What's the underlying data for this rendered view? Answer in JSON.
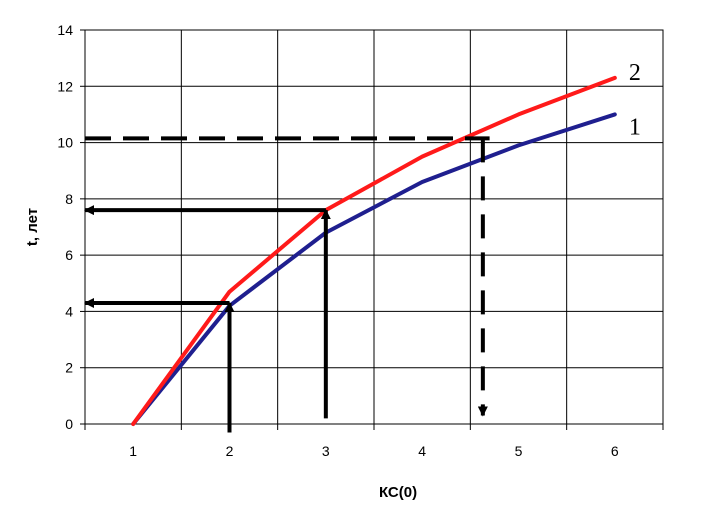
{
  "chart_data": {
    "type": "line",
    "xlabel": "КС(0)",
    "ylabel": "t, лет",
    "xlim": [
      0.5,
      6.5
    ],
    "ylim": [
      0,
      14
    ],
    "x_ticks": [
      "1",
      "2",
      "3",
      "4",
      "5",
      "6"
    ],
    "y_ticks": [
      "0",
      "2",
      "4",
      "6",
      "8",
      "10",
      "12",
      "14"
    ],
    "grid": true,
    "x": [
      1,
      2,
      3,
      4,
      5,
      6
    ],
    "series": [
      {
        "name": "1",
        "color": "#1f1f8f",
        "values": [
          0,
          4.2,
          6.8,
          8.6,
          9.9,
          11.0
        ]
      },
      {
        "name": "2",
        "color": "#ff1a1a",
        "values": [
          0,
          4.7,
          7.6,
          9.5,
          11.0,
          12.3
        ]
      }
    ],
    "annotations": [
      {
        "kind": "arrow",
        "style": "solid",
        "from": [
          2,
          -0.3
        ],
        "to": [
          2,
          4.3
        ]
      },
      {
        "kind": "arrow",
        "style": "solid",
        "from": [
          2,
          4.3
        ],
        "to": [
          0.5,
          4.3
        ]
      },
      {
        "kind": "arrow",
        "style": "solid",
        "from": [
          3,
          0.2
        ],
        "to": [
          3,
          7.6
        ]
      },
      {
        "kind": "arrow",
        "style": "solid",
        "from": [
          3,
          7.6
        ],
        "to": [
          0.5,
          7.6
        ]
      },
      {
        "kind": "line",
        "style": "dashed",
        "from": [
          0.5,
          10.15
        ],
        "to": [
          4.7,
          10.15
        ]
      },
      {
        "kind": "arrow",
        "style": "dashed",
        "from": [
          4.63,
          10.15
        ],
        "to": [
          4.63,
          0.3
        ]
      }
    ]
  }
}
